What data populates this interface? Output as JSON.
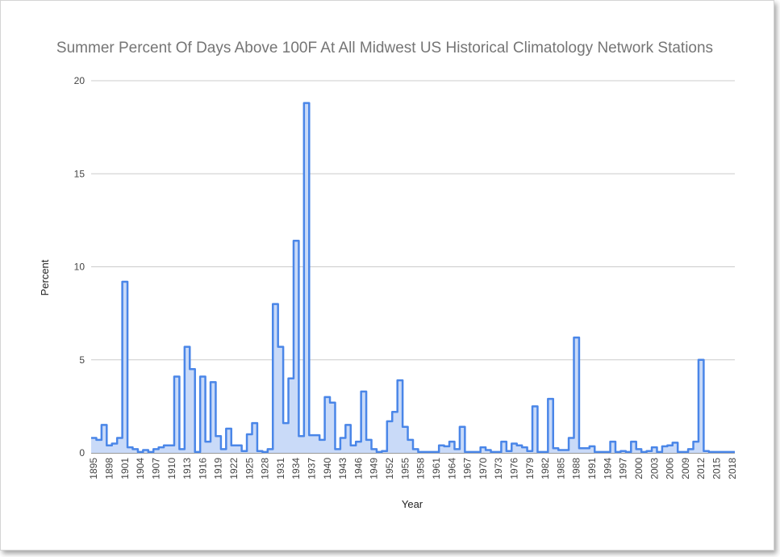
{
  "chart_data": {
    "type": "area",
    "title": "Summer Percent Of Days Above 100F At All Midwest US Historical Climatology Network Stations",
    "xlabel": "Year",
    "ylabel": "Percent",
    "ylim": [
      0,
      20
    ],
    "yticks": [
      0,
      5,
      10,
      15,
      20
    ],
    "xlim": [
      1895,
      2018
    ],
    "xtick_labels": [
      "1895",
      "1898",
      "1901",
      "1904",
      "1907",
      "1910",
      "1913",
      "1916",
      "1919",
      "1922",
      "1925",
      "1928",
      "1931",
      "1934",
      "1937",
      "1940",
      "1943",
      "1946",
      "1949",
      "1952",
      "1955",
      "1958",
      "1961",
      "1964",
      "1967",
      "1970",
      "1973",
      "1976",
      "1979",
      "1982",
      "1985",
      "1988",
      "1991",
      "1994",
      "1997",
      "2000",
      "2003",
      "2006",
      "2009",
      "2012",
      "2015",
      "2018"
    ],
    "grid": true,
    "legend": "none",
    "line_color": "#4a86e8",
    "fill_color": "#c9daf8",
    "series": [
      {
        "years": [
          1895,
          1896,
          1897,
          1898,
          1899,
          1900,
          1901,
          1902,
          1903,
          1904,
          1905,
          1906,
          1907,
          1908,
          1909,
          1910,
          1911,
          1912,
          1913,
          1914,
          1915,
          1916,
          1917,
          1918,
          1919,
          1920,
          1921,
          1922,
          1923,
          1924,
          1925,
          1926,
          1927,
          1928,
          1929,
          1930,
          1931,
          1932,
          1933,
          1934,
          1935,
          1936,
          1937,
          1938,
          1939,
          1940,
          1941,
          1942,
          1943,
          1944,
          1945,
          1946,
          1947,
          1948,
          1949,
          1950,
          1951,
          1952,
          1953,
          1954,
          1955,
          1956,
          1957,
          1958,
          1959,
          1960,
          1961,
          1962,
          1963,
          1964,
          1965,
          1966,
          1967,
          1968,
          1969,
          1970,
          1971,
          1972,
          1973,
          1974,
          1975,
          1976,
          1977,
          1978,
          1979,
          1980,
          1981,
          1982,
          1983,
          1984,
          1985,
          1986,
          1987,
          1988,
          1989,
          1990,
          1991,
          1992,
          1993,
          1994,
          1995,
          1996,
          1997,
          1998,
          1999,
          2000,
          2001,
          2002,
          2003,
          2004,
          2005,
          2006,
          2007,
          2008,
          2009,
          2010,
          2011,
          2012,
          2013,
          2014,
          2015,
          2016,
          2017,
          2018
        ],
        "values": [
          0.8,
          0.7,
          1.5,
          0.4,
          0.5,
          0.8,
          9.2,
          0.3,
          0.2,
          0.05,
          0.15,
          0.05,
          0.2,
          0.3,
          0.4,
          0.4,
          4.1,
          0.2,
          5.7,
          4.5,
          0.05,
          4.1,
          0.6,
          3.8,
          0.9,
          0.2,
          1.3,
          0.4,
          0.4,
          0.1,
          1.0,
          1.6,
          0.1,
          0.05,
          0.2,
          8.0,
          5.7,
          1.6,
          4.0,
          11.4,
          0.9,
          18.8,
          0.95,
          0.95,
          0.7,
          3.0,
          2.7,
          0.2,
          0.8,
          1.5,
          0.4,
          0.6,
          3.3,
          0.7,
          0.2,
          0.05,
          0.1,
          1.7,
          2.2,
          3.9,
          1.4,
          0.7,
          0.2,
          0.05,
          0.05,
          0.05,
          0.05,
          0.4,
          0.35,
          0.6,
          0.2,
          1.4,
          0.05,
          0.05,
          0.05,
          0.3,
          0.15,
          0.05,
          0.05,
          0.6,
          0.1,
          0.5,
          0.4,
          0.3,
          0.1,
          2.5,
          0.05,
          0.05,
          2.9,
          0.25,
          0.15,
          0.15,
          0.8,
          6.2,
          0.25,
          0.25,
          0.35,
          0.05,
          0.05,
          0.05,
          0.6,
          0.05,
          0.1,
          0.05,
          0.6,
          0.2,
          0.05,
          0.1,
          0.3,
          0.05,
          0.35,
          0.4,
          0.55,
          0.05,
          0.05,
          0.2,
          0.6,
          5.0,
          0.1,
          0.05,
          0.05,
          0.05,
          0.05,
          0.05
        ]
      }
    ]
  }
}
